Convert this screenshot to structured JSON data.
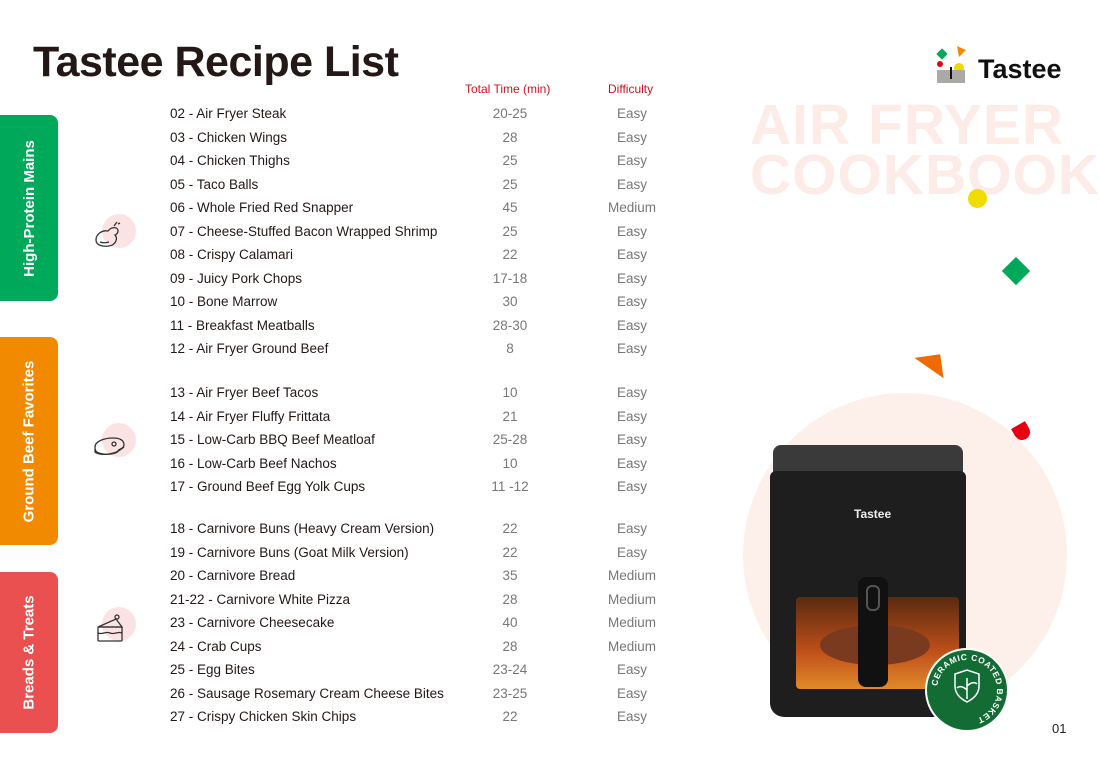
{
  "title": "Tastee Recipe List",
  "headers": {
    "time": "Total Time (min)",
    "difficulty": "Difficulty"
  },
  "brand": {
    "logo_text": "Tastee",
    "watermark_line1": "AIR FRYER",
    "watermark_line2": "COOKBOOK",
    "product_label": "Tastee",
    "badge": "CERAMIC COATED BASKET"
  },
  "colors": {
    "green": "#00a85a",
    "orange": "#f28a00",
    "red": "#e9504f",
    "header_red": "#c8161d"
  },
  "sections": [
    {
      "label": "High-Protein Mains",
      "icon": "chicken-icon",
      "rows": [
        {
          "name": "02 - Air Fryer Steak",
          "time": "20-25",
          "difficulty": "Easy"
        },
        {
          "name": "03 - Chicken Wings",
          "time": "28",
          "difficulty": "Easy"
        },
        {
          "name": "04 - Chicken Thighs",
          "time": "25",
          "difficulty": "Easy"
        },
        {
          "name": "05 - Taco Balls",
          "time": "25",
          "difficulty": "Easy"
        },
        {
          "name": "06 - Whole Fried Red Snapper",
          "time": "45",
          "difficulty": "Medium"
        },
        {
          "name": "07 - Cheese-Stuffed Bacon Wrapped Shrimp",
          "time": "25",
          "difficulty": "Easy"
        },
        {
          "name": "08 - Crispy Calamari",
          "time": "22",
          "difficulty": "Easy"
        },
        {
          "name": "09 - Juicy Pork Chops",
          "time": "17-18",
          "difficulty": "Easy"
        },
        {
          "name": "10 - Bone Marrow",
          "time": "30",
          "difficulty": "Easy"
        },
        {
          "name": "11 - Breakfast Meatballs",
          "time": "28-30",
          "difficulty": "Easy"
        },
        {
          "name": "12 - Air Fryer Ground Beef",
          "time": "8",
          "difficulty": "Easy"
        }
      ]
    },
    {
      "label": "Ground Beef Favorites",
      "icon": "steak-icon",
      "rows": [
        {
          "name": "13 - Air Fryer Beef Tacos",
          "time": "10",
          "difficulty": "Easy"
        },
        {
          "name": "14 - Air Fryer Fluffy Frittata",
          "time": "21",
          "difficulty": "Easy"
        },
        {
          "name": "15 - Low-Carb BBQ Beef Meatloaf",
          "time": "25-28",
          "difficulty": "Easy"
        },
        {
          "name": "16 - Low-Carb Beef Nachos",
          "time": "10",
          "difficulty": "Easy"
        },
        {
          "name": "17 - Ground Beef Egg Yolk Cups",
          "time": "11 -12",
          "difficulty": "Easy"
        }
      ]
    },
    {
      "label": "Breads & Treats",
      "icon": "cake-icon",
      "rows": [
        {
          "name": "18 - Carnivore Buns (Heavy Cream Version)",
          "time": "22",
          "difficulty": "Easy"
        },
        {
          "name": "19 - Carnivore Buns (Goat Milk Version)",
          "time": "22",
          "difficulty": "Easy"
        },
        {
          "name": "20 - Carnivore Bread",
          "time": "35",
          "difficulty": "Medium"
        },
        {
          "name": "21-22 - Carnivore White Pizza",
          "time": "28",
          "difficulty": "Medium"
        },
        {
          "name": "23 - Carnivore Cheesecake",
          "time": "40",
          "difficulty": "Medium"
        },
        {
          "name": "24 - Crab Cups",
          "time": "28",
          "difficulty": "Medium"
        },
        {
          "name": "25 - Egg Bites",
          "time": "23-24",
          "difficulty": "Easy"
        },
        {
          "name": "26 - Sausage Rosemary Cream Cheese Bites",
          "time": "23-25",
          "difficulty": "Easy"
        },
        {
          "name": "27 - Crispy Chicken Skin Chips",
          "time": "22",
          "difficulty": "Easy"
        }
      ]
    }
  ],
  "page_number": "01"
}
